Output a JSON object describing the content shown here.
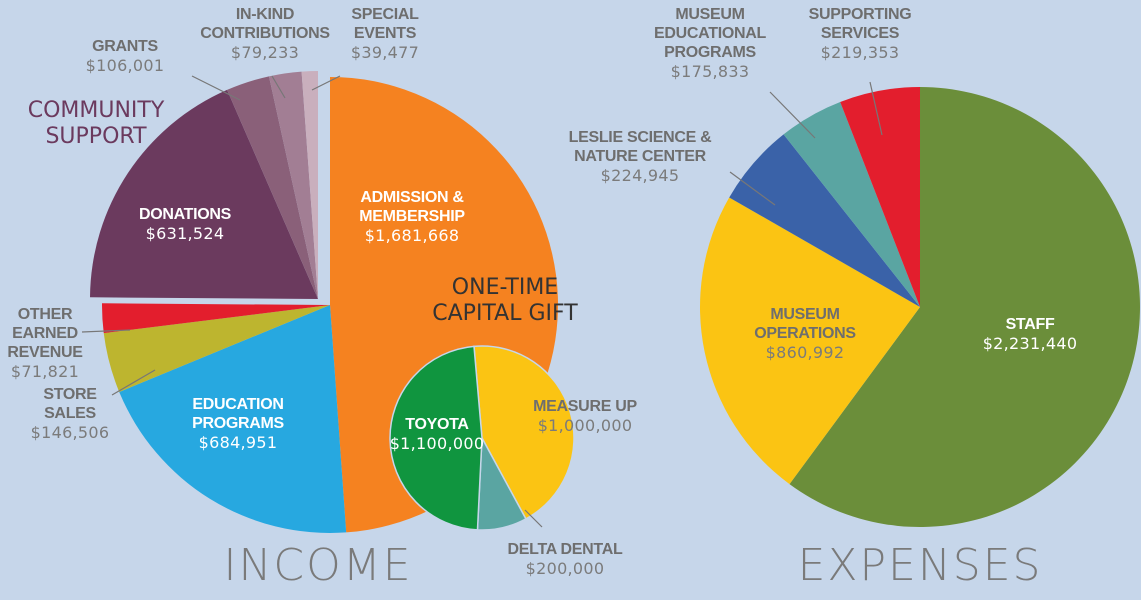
{
  "chart_data": [
    {
      "type": "pie",
      "title": "INCOME",
      "annotation": "COMMUNITY SUPPORT",
      "categories": [
        "ADMISSION & MEMBERSHIP",
        "EDUCATION PROGRAMS",
        "STORE SALES",
        "OTHER EARNED REVENUE",
        "DONATIONS",
        "GRANTS",
        "IN-KIND CONTRIBUTIONS",
        "SPECIAL EVENTS"
      ],
      "values": [
        1681668,
        684951,
        146506,
        71821,
        631524,
        106001,
        79233,
        39477
      ],
      "value_labels": [
        "$1,681,668",
        "$684,951",
        "$146,506",
        "$71,821",
        "$631,524",
        "$106,001",
        "$79,233",
        "$39,477"
      ],
      "colors": [
        "#f58220",
        "#27a8e0",
        "#bdb52f",
        "#e31e2d",
        "#6b3a5e",
        "#8a6079",
        "#a27e94",
        "#c9afbd"
      ]
    },
    {
      "type": "pie",
      "title": "ONE-TIME CAPITAL GIFT",
      "categories": [
        "MEASURE UP",
        "DELTA DENTAL",
        "TOYOTA"
      ],
      "values": [
        1000000,
        200000,
        1100000
      ],
      "value_labels": [
        "$1,000,000",
        "$200,000",
        "$1,100,000"
      ],
      "colors": [
        "#fbc413",
        "#5aa5a2",
        "#10953f"
      ]
    },
    {
      "type": "pie",
      "title": "EXPENSES",
      "categories": [
        "STAFF",
        "MUSEUM OPERATIONS",
        "LESLIE SCIENCE & NATURE CENTER",
        "MUSEUM EDUCATIONAL PROGRAMS",
        "SUPPORTING SERVICES"
      ],
      "values": [
        2231440,
        860992,
        224945,
        175833,
        219353
      ],
      "value_labels": [
        "$2,231,440",
        "$860,992",
        "$224,945",
        "$175,833",
        "$219,353"
      ],
      "colors": [
        "#6b8e3a",
        "#fbc413",
        "#3a62a8",
        "#5aa5a2",
        "#e31e2d"
      ]
    }
  ]
}
